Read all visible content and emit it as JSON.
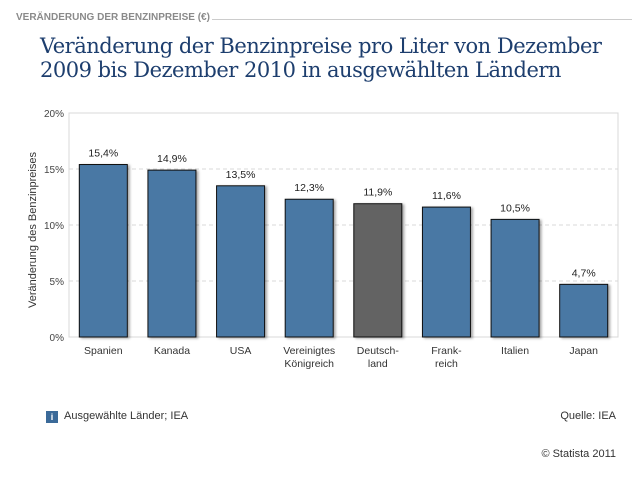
{
  "header": {
    "label": "VERÄNDERUNG DER BENZINPREISE (€)"
  },
  "title": "Veränderung der Benzinpreise pro Liter von Dezember 2009 bis Dezember 2010 in ausgewählten Ländern",
  "chart_data": {
    "type": "bar",
    "categories": [
      "Spanien",
      "Kanada",
      "USA",
      "Vereinigtes Königreich",
      "Deutsch-land",
      "Frank-reich",
      "Italien",
      "Japan"
    ],
    "category_lines": [
      [
        "Spanien"
      ],
      [
        "Kanada"
      ],
      [
        "USA"
      ],
      [
        "Vereinigtes",
        "Königreich"
      ],
      [
        "Deutsch-",
        "land"
      ],
      [
        "Frank-",
        "reich"
      ],
      [
        "Italien"
      ],
      [
        "Japan"
      ]
    ],
    "values": [
      15.4,
      14.9,
      13.5,
      12.3,
      11.9,
      11.6,
      10.5,
      4.7
    ],
    "data_labels": [
      "15,4%",
      "14,9%",
      "13,5%",
      "12,3%",
      "11,9%",
      "11,6%",
      "10,5%",
      "4,7%"
    ],
    "ylabel": "Veränderung des Benzinpreises",
    "xlabel": "",
    "ylim": [
      0,
      20
    ],
    "yticks": [
      0,
      5,
      10,
      15,
      20
    ],
    "ytick_labels": [
      "0%",
      "5%",
      "10%",
      "15%",
      "20%"
    ],
    "grid": true,
    "colors": {
      "default": "#4a78a4",
      "highlight": "#646464",
      "highlight_category": "Deutsch-land"
    }
  },
  "footer": {
    "info_icon": "i",
    "note": "Ausgewählte Länder; IEA",
    "source": "Quelle: IEA",
    "copyright": "© Statista 2011"
  }
}
